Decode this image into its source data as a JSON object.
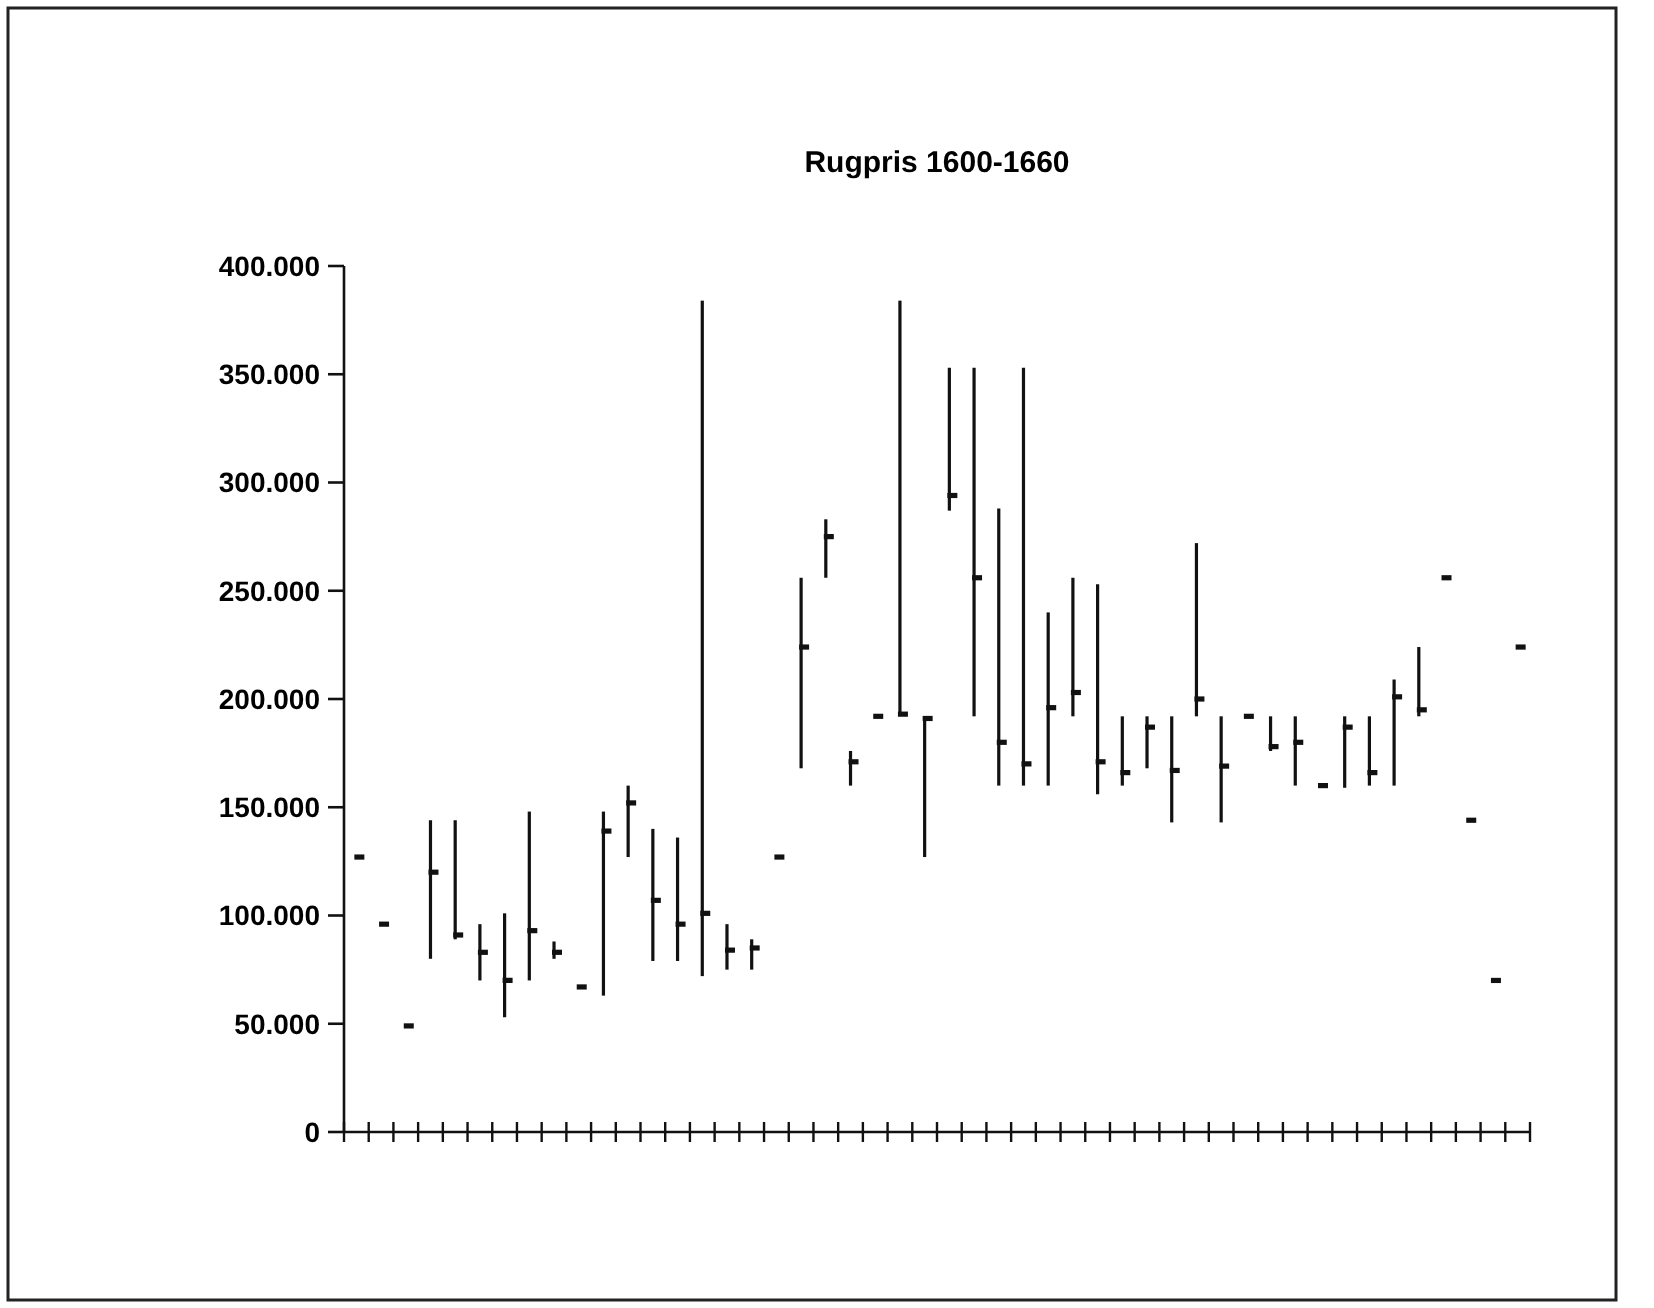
{
  "chart_data": {
    "type": "bar",
    "title": "Rugpris 1600-1660",
    "categories": [
      null,
      null,
      null,
      null,
      null,
      null,
      null,
      null,
      null,
      null,
      null,
      null,
      null,
      null,
      null,
      null,
      null,
      null,
      null,
      null,
      null,
      null,
      null,
      null,
      null,
      null,
      null,
      null,
      null,
      null,
      null,
      null,
      null,
      null,
      null,
      null,
      null,
      null,
      null,
      null,
      null,
      null,
      null,
      null,
      null,
      null,
      null,
      null
    ],
    "series": [
      {
        "color": "#111111",
        "base": [
          null,
          null,
          null,
          80000,
          89000,
          70000,
          53000,
          70000,
          80000,
          null,
          63000,
          127000,
          79000,
          79000,
          72000,
          75000,
          75000,
          null,
          168000,
          256000,
          160000,
          null,
          193000,
          127000,
          287000,
          192000,
          160000,
          160000,
          160000,
          192000,
          156000,
          160000,
          168000,
          143000,
          192000,
          143000,
          null,
          176000,
          160000,
          null,
          159000,
          160000,
          160000,
          192000,
          null,
          null,
          null,
          null
        ],
        "values": [
          null,
          null,
          null,
          64000,
          55000,
          26000,
          48000,
          78000,
          8000,
          null,
          85000,
          33000,
          61000,
          57000,
          312000,
          21000,
          14000,
          null,
          88000,
          27000,
          16000,
          null,
          191000,
          64000,
          66000,
          161000,
          128000,
          193000,
          80000,
          64000,
          97000,
          32000,
          24000,
          49000,
          80000,
          49000,
          null,
          16000,
          32000,
          null,
          33000,
          32000,
          49000,
          32000,
          null,
          null,
          null,
          null
        ]
      },
      {
        "type": "scatter",
        "color": "#111111",
        "marker": "square",
        "values": [
          127000,
          96000,
          49000,
          120000,
          91000,
          83000,
          70000,
          93000,
          83000,
          67000,
          139000,
          152000,
          107000,
          96000,
          101000,
          84000,
          85000,
          127000,
          224000,
          275000,
          171000,
          192000,
          193000,
          191000,
          294000,
          256000,
          180000,
          170000,
          196000,
          203000,
          171000,
          166000,
          187000,
          167000,
          200000,
          169000,
          192000,
          178000,
          180000,
          160000,
          187000,
          166000,
          201000,
          195000,
          256000,
          144000,
          70000,
          224000
        ]
      }
    ],
    "ylim": [
      0,
      400000
    ],
    "yticks": [
      0,
      {
        "value": 50000,
        "label": "50.000"
      },
      {
        "value": 100000,
        "label": "100.000"
      },
      {
        "value": 150000,
        "label": "150.000"
      },
      {
        "value": 200000,
        "label": "200.000"
      },
      {
        "value": 250000,
        "label": "250.000"
      },
      {
        "value": 300000,
        "label": "300.000"
      },
      {
        "value": 350000,
        "label": "350.000"
      },
      {
        "value": 400000,
        "label": "400.000"
      }
    ],
    "grid": false
  }
}
